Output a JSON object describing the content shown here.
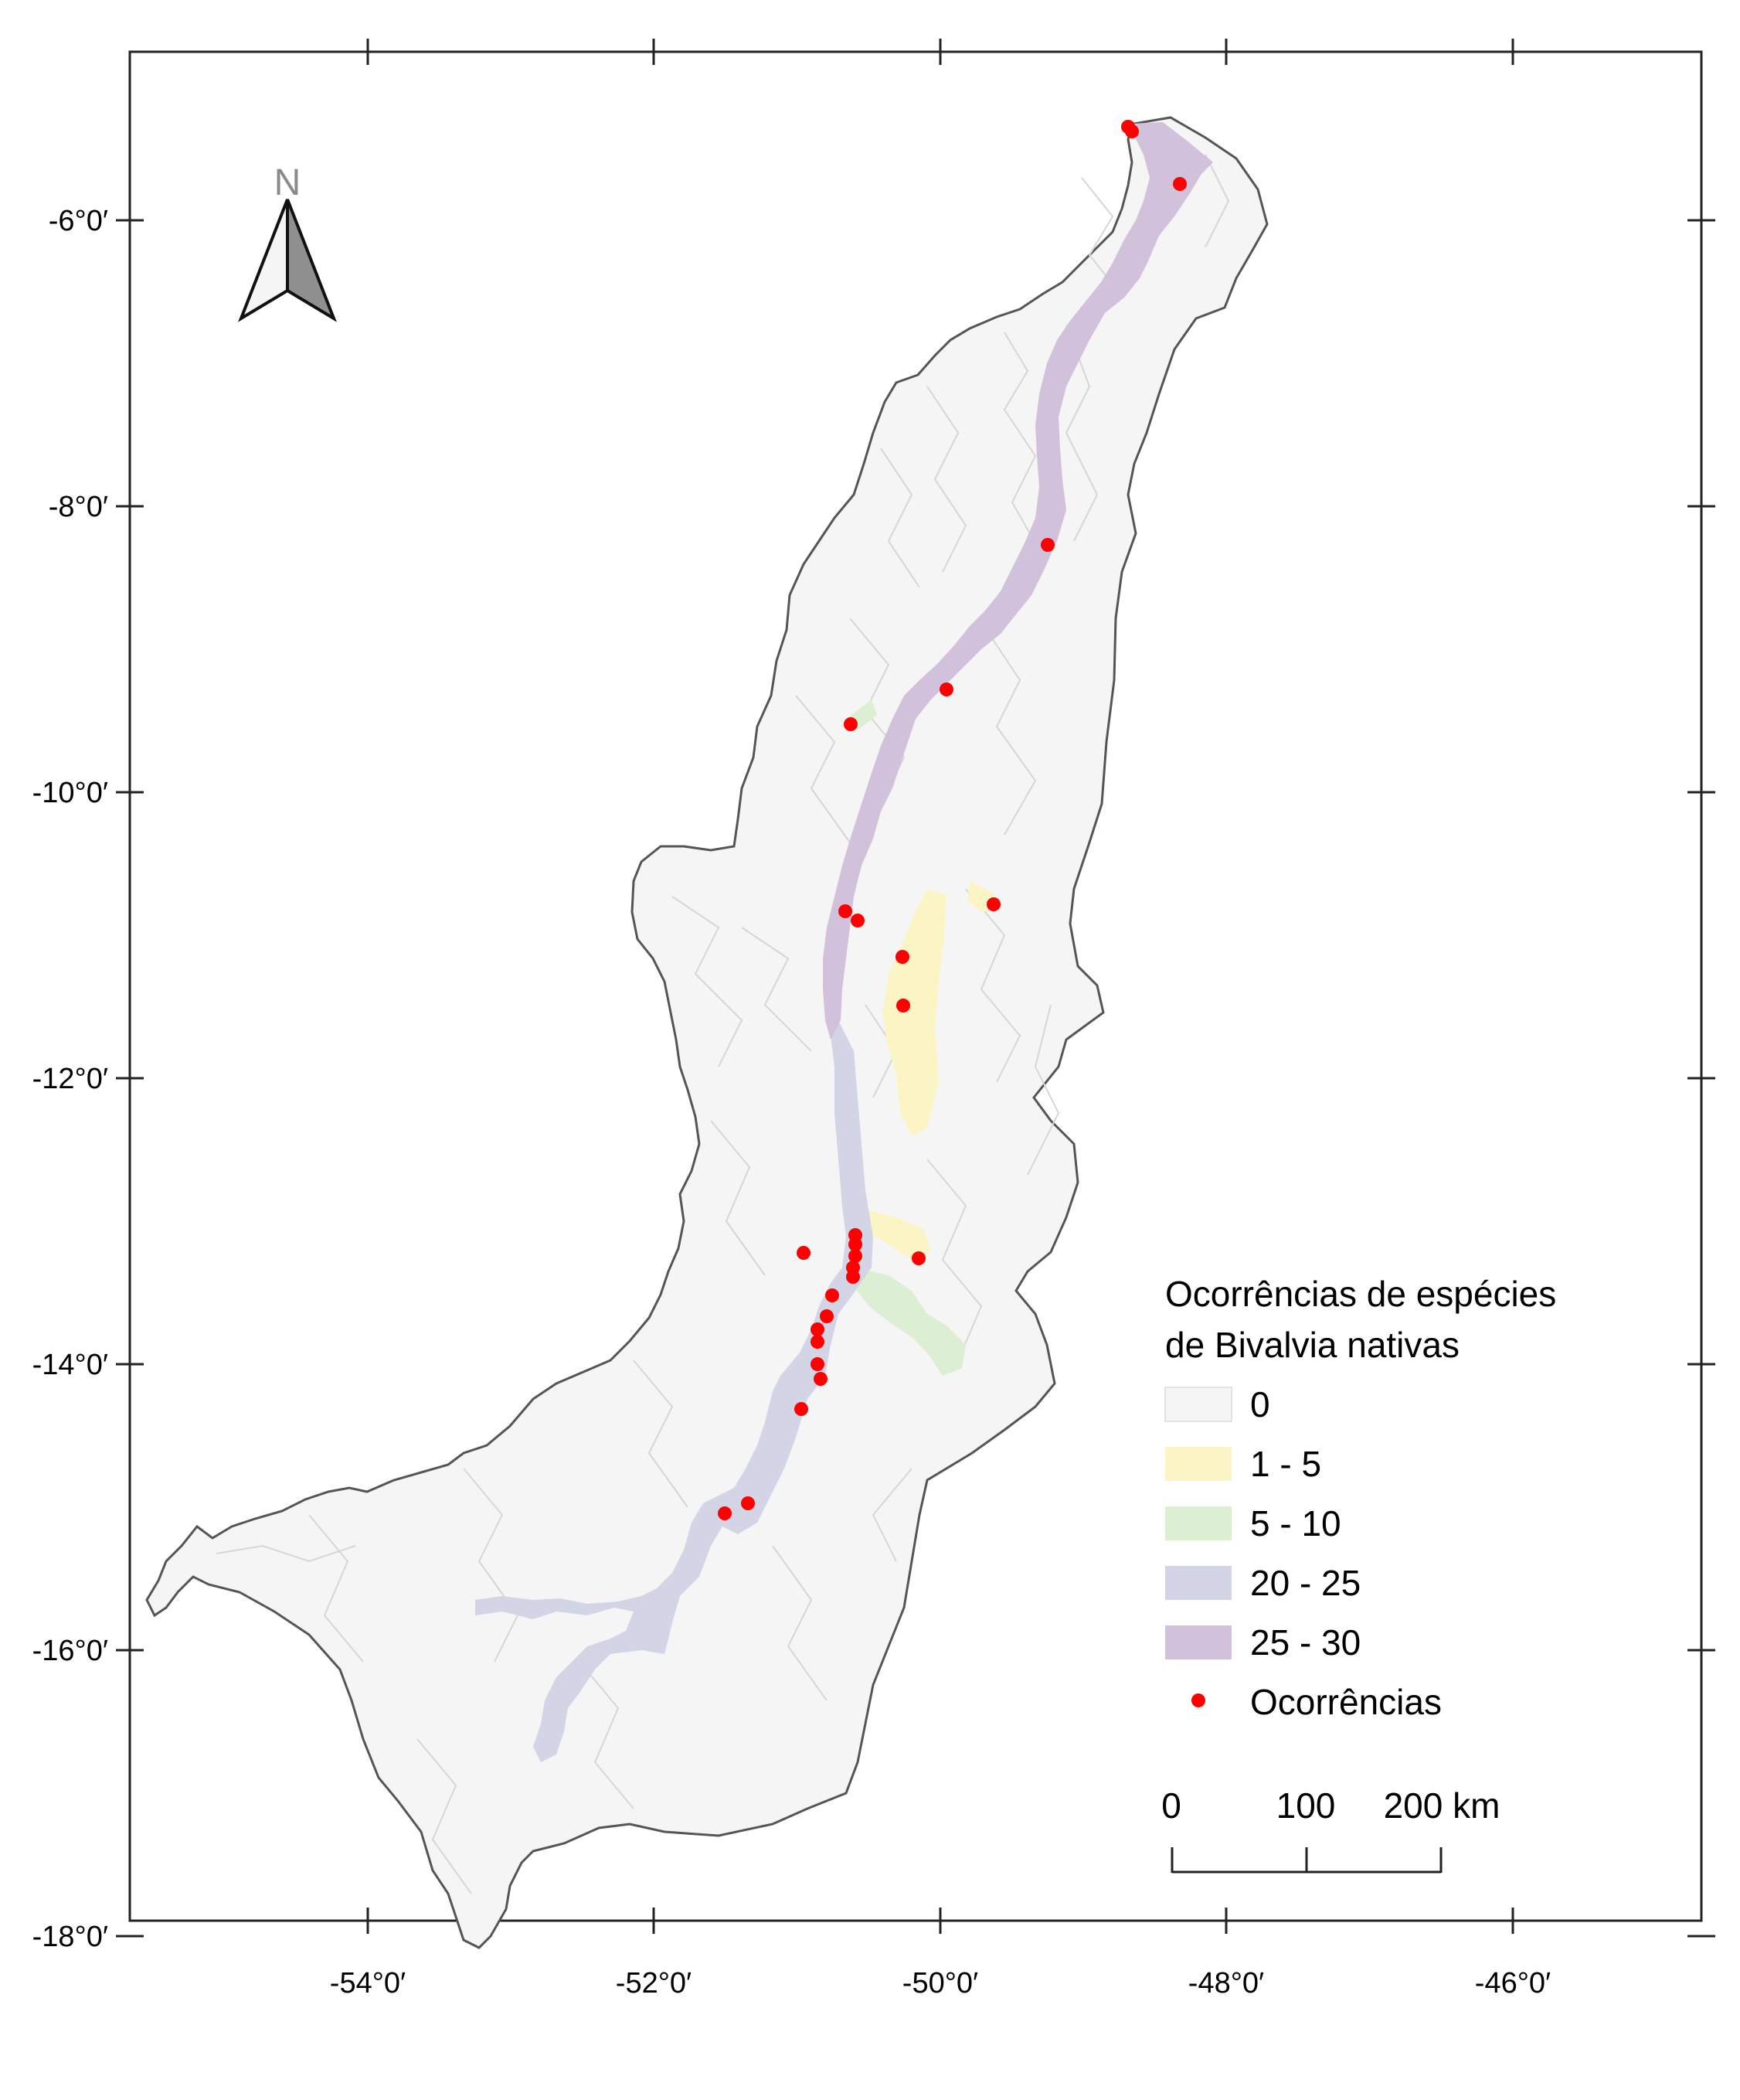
{
  "map": {
    "north_arrow_label": "N",
    "axes": {
      "left_labels": [
        "-6°0′",
        "-8°0′",
        "-10°0′",
        "-12°0′",
        "-14°0′",
        "-16°0′",
        "-18°0′"
      ],
      "bottom_labels": [
        "-54°0′",
        "-52°0′",
        "-50°0′",
        "-48°0′",
        "-46°0′"
      ]
    },
    "legend": {
      "title_line1": "Ocorrências de espécies",
      "title_line2": "de Bivalvia nativas",
      "items": [
        {
          "label": "0",
          "color": "#f5f5f5"
        },
        {
          "label": "1 - 5",
          "color": "#fbf5c6"
        },
        {
          "label": "5 - 10",
          "color": "#dcefd2"
        },
        {
          "label": "20 - 25",
          "color": "#d3d4e5"
        },
        {
          "label": "25 - 30",
          "color": "#d2c1da"
        }
      ],
      "points_label": "Ocorrências",
      "point_color": "#ff0000"
    },
    "scale_bar": {
      "labels": [
        "0",
        "100",
        "200 km"
      ]
    }
  }
}
